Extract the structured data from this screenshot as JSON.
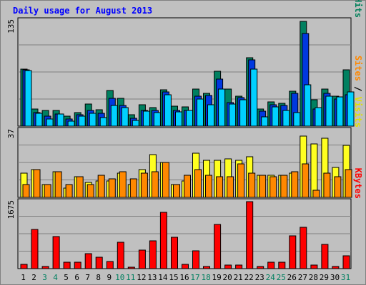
{
  "chart_data": {
    "type": "bar",
    "title": "Daily usage for August 2013",
    "categories": [
      "1",
      "2",
      "3",
      "4",
      "5",
      "6",
      "7",
      "8",
      "9",
      "10",
      "11",
      "12",
      "13",
      "14",
      "15",
      "16",
      "17",
      "18",
      "19",
      "20",
      "21",
      "22",
      "23",
      "24",
      "25",
      "26",
      "27",
      "28",
      "29",
      "30",
      "31"
    ],
    "weekend_days": [
      "3",
      "4",
      "10",
      "11",
      "17",
      "18",
      "24",
      "25",
      "31"
    ],
    "panels": [
      {
        "id": "pages-files-hits",
        "ymax_label": "135",
        "ymax": 135,
        "grid": true,
        "right_label": [
          {
            "text": "Pages",
            "color": "#00c0e0"
          },
          {
            "text": " / ",
            "color": "#000000"
          },
          {
            "text": "Files",
            "color": "#0038e0"
          },
          {
            "text": " / ",
            "color": "#000000"
          },
          {
            "text": "Hits",
            "color": "#00805a"
          }
        ],
        "series": [
          {
            "name": "Hits",
            "color": "#008060",
            "values": [
              72,
              22,
              20,
              20,
              13,
              17,
              28,
              21,
              45,
              35,
              14,
              27,
              23,
              46,
              25,
              24,
              47,
              41,
              69,
              47,
              38,
              86,
              22,
              31,
              29,
              44,
              132,
              33,
              47,
              38,
              71
            ]
          },
          {
            "name": "Files",
            "color": "#0038e0",
            "values": [
              71,
              17,
              13,
              15,
              9,
              14,
              20,
              16,
              35,
              26,
              10,
              20,
              20,
              43,
              20,
              20,
              38,
              39,
              59,
              30,
              36,
              84,
              19,
              27,
              26,
              41,
              117,
              22,
              41,
              34,
              40
            ]
          },
          {
            "name": "Pages",
            "color": "#00d0ff",
            "values": [
              70,
              16,
              9,
              15,
              6,
              13,
              16,
              11,
              26,
              23,
              7,
              19,
              17,
              40,
              18,
              20,
              34,
              27,
              47,
              28,
              33,
              72,
              12,
              24,
              20,
              17,
              52,
              23,
              38,
              37,
              43
            ]
          }
        ]
      },
      {
        "id": "visits-sites",
        "ymax_label": "37",
        "ymax": 37,
        "grid": true,
        "right_label": [
          {
            "text": "Sites",
            "color": "#ff8800"
          },
          {
            "text": " / ",
            "color": "#000000"
          },
          {
            "text": "Visits",
            "color": "#e0e000"
          }
        ],
        "series": [
          {
            "name": "Visits",
            "color": "#ffff20",
            "values": [
              13,
              15,
              7,
              14,
              5,
              11,
              8,
              9,
              9,
              13,
              7,
              15,
              23,
              19,
              7,
              9,
              24,
              20,
              20,
              21,
              20,
              22,
              12,
              12,
              12,
              13,
              33,
              29,
              32,
              16,
              28
            ]
          },
          {
            "name": "Sites",
            "color": "#ff8800",
            "values": [
              7,
              15,
              7,
              14,
              7,
              11,
              7,
              12,
              10,
              14,
              10,
              13,
              14,
              19,
              7,
              12,
              15,
              12,
              11,
              11,
              18,
              13,
              12,
              11,
              12,
              14,
              18,
              4,
              13,
              11,
              15
            ]
          }
        ]
      },
      {
        "id": "kbytes",
        "ymax_label": "1675",
        "ymax": 1675,
        "grid": true,
        "right_label": [
          {
            "text": "KBytes",
            "color": "#ff0000"
          }
        ],
        "series": [
          {
            "name": "KBytes",
            "color": "#ff0000",
            "values": [
              110,
              960,
              60,
              780,
              160,
              160,
              360,
              280,
              170,
              650,
              30,
              450,
              680,
              1370,
              770,
              110,
              440,
              60,
              1080,
              80,
              80,
              1640,
              60,
              160,
              160,
              800,
              1020,
              90,
              600,
              60,
              320
            ]
          }
        ]
      }
    ]
  },
  "colors": {
    "background": "#ffffff",
    "frame": "#c0c0c0",
    "plot": "#c0c0c0",
    "title": "#0000ff",
    "weekend_label": "#008060",
    "weekday_label": "#000000"
  }
}
